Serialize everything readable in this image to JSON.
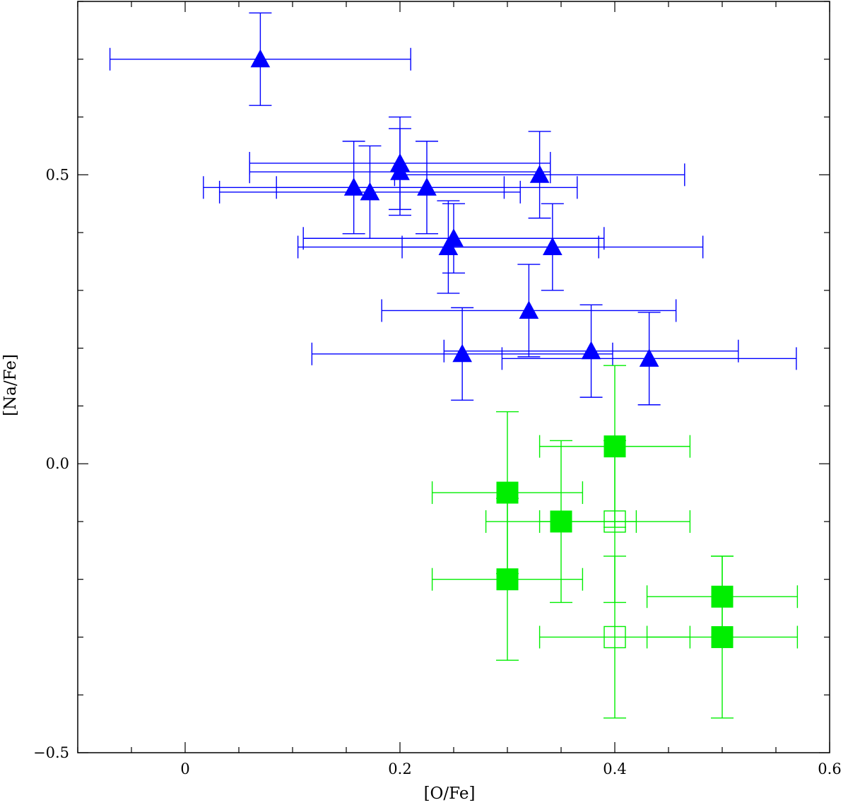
{
  "chart_data": {
    "type": "scatter",
    "title": "",
    "xlabel": "[O/Fe]",
    "ylabel": "[Na/Fe]",
    "xlim": [
      -0.1,
      0.6
    ],
    "ylim": [
      -0.5,
      0.8
    ],
    "x_major_ticks": [
      0,
      0.2,
      0.4,
      0.6
    ],
    "x_major_tick_labels": [
      "0",
      "0.2",
      "0.4",
      "0.6"
    ],
    "x_minor_step": 0.05,
    "y_major_ticks": [
      -0.5,
      0.0,
      0.5
    ],
    "y_major_tick_labels": [
      "−0.5",
      "0.0",
      "0.5"
    ],
    "y_minor_step": 0.1,
    "grid": false,
    "legend": null,
    "series": [
      {
        "name": "triangles",
        "marker": "filled-triangle",
        "color": "#0000ff",
        "points": [
          {
            "x": 0.07,
            "y": 0.7,
            "xerr": 0.14,
            "yerr": 0.08
          },
          {
            "x": 0.2,
            "y": 0.52,
            "xerr": 0.14,
            "yerr": 0.08
          },
          {
            "x": 0.2,
            "y": 0.505,
            "xerr": 0.14,
            "yerr": 0.075
          },
          {
            "x": 0.33,
            "y": 0.5,
            "xerr": 0.135,
            "yerr": 0.075
          },
          {
            "x": 0.157,
            "y": 0.478,
            "xerr": 0.14,
            "yerr": 0.08
          },
          {
            "x": 0.172,
            "y": 0.47,
            "xerr": 0.14,
            "yerr": 0.08
          },
          {
            "x": 0.225,
            "y": 0.478,
            "xerr": 0.14,
            "yerr": 0.08
          },
          {
            "x": 0.25,
            "y": 0.39,
            "xerr": 0.14,
            "yerr": 0.06
          },
          {
            "x": 0.245,
            "y": 0.375,
            "xerr": 0.14,
            "yerr": 0.08
          },
          {
            "x": 0.342,
            "y": 0.375,
            "xerr": 0.14,
            "yerr": 0.075
          },
          {
            "x": 0.32,
            "y": 0.265,
            "xerr": 0.137,
            "yerr": 0.08
          },
          {
            "x": 0.258,
            "y": 0.19,
            "xerr": 0.14,
            "yerr": 0.08
          },
          {
            "x": 0.378,
            "y": 0.195,
            "xerr": 0.137,
            "yerr": 0.08
          },
          {
            "x": 0.432,
            "y": 0.182,
            "xerr": 0.137,
            "yerr": 0.08
          }
        ]
      },
      {
        "name": "filled squares",
        "marker": "filled-square",
        "color": "#00ee00",
        "points": [
          {
            "x": 0.4,
            "y": 0.03,
            "xerr": 0.07,
            "yerr": 0.14
          },
          {
            "x": 0.3,
            "y": -0.05,
            "xerr": 0.07,
            "yerr": 0.14
          },
          {
            "x": 0.35,
            "y": -0.1,
            "xerr": 0.07,
            "yerr": 0.14
          },
          {
            "x": 0.3,
            "y": -0.2,
            "xerr": 0.07,
            "yerr": 0.14
          },
          {
            "x": 0.5,
            "y": -0.23,
            "xerr": 0.07,
            "yerr": 0.07
          },
          {
            "x": 0.5,
            "y": -0.3,
            "xerr": 0.07,
            "yerr": 0.14
          }
        ]
      },
      {
        "name": "open squares",
        "marker": "open-square",
        "color": "#00ee00",
        "points": [
          {
            "x": 0.4,
            "y": -0.1,
            "xerr": 0.07,
            "yerr": 0.14
          },
          {
            "x": 0.4,
            "y": -0.3,
            "xerr": 0.07,
            "yerr": 0.14
          }
        ]
      }
    ]
  }
}
